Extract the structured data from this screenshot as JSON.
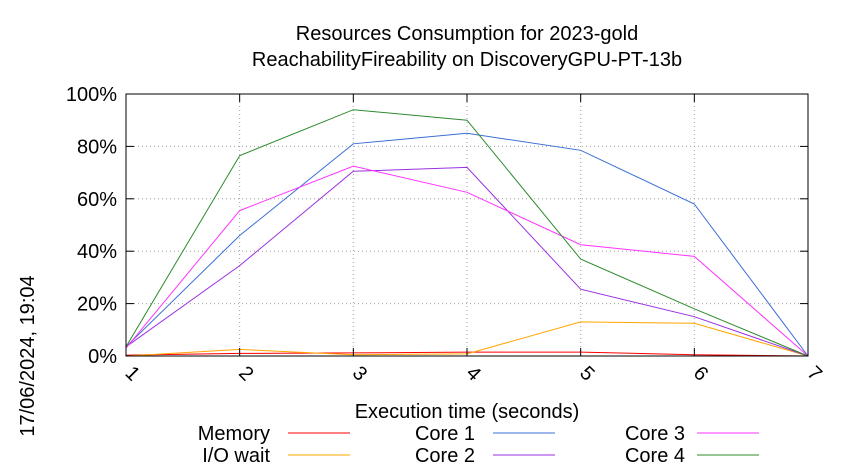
{
  "chart_data": {
    "type": "line",
    "title": "Resources Consumption for 2023-gold",
    "subtitle": "ReachabilityFireability on DiscoveryGPU-PT-13b",
    "xlabel": "Execution time (seconds)",
    "ylabel": "",
    "side_label": "17/06/2024, 19:04",
    "x": [
      1,
      2,
      3,
      4,
      5,
      6,
      7
    ],
    "x_ticks": [
      "1",
      "2",
      "3",
      "4",
      "5",
      "6",
      "7"
    ],
    "y_ticks": [
      "0%",
      "20%",
      "40%",
      "60%",
      "80%",
      "100%"
    ],
    "xlim": [
      1,
      7
    ],
    "ylim": [
      0,
      100
    ],
    "grid": true,
    "legend_position": "bottom",
    "series": [
      {
        "name": "Memory",
        "color": "#ff0000",
        "values": [
          0.3,
          1.0,
          1.2,
          1.5,
          1.5,
          0.5,
          0.0
        ]
      },
      {
        "name": "I/O wait",
        "color": "#ffa500",
        "values": [
          0.0,
          2.5,
          0.5,
          0.8,
          13.0,
          12.5,
          0.0
        ]
      },
      {
        "name": "Core 1",
        "color": "#3b6fd6",
        "values": [
          3.5,
          46.0,
          81.0,
          85.0,
          78.5,
          58.0,
          0.0
        ]
      },
      {
        "name": "Core 2",
        "color": "#9a2fe0",
        "values": [
          3.5,
          34.5,
          70.5,
          72.0,
          25.5,
          15.0,
          0.0
        ]
      },
      {
        "name": "Core 3",
        "color": "#ff33ff",
        "values": [
          3.0,
          55.5,
          72.5,
          62.5,
          42.5,
          38.0,
          0.0
        ]
      },
      {
        "name": "Core 4",
        "color": "#2e8b2e",
        "values": [
          3.5,
          76.5,
          94.0,
          90.0,
          37.0,
          18.0,
          0.0
        ]
      }
    ]
  }
}
